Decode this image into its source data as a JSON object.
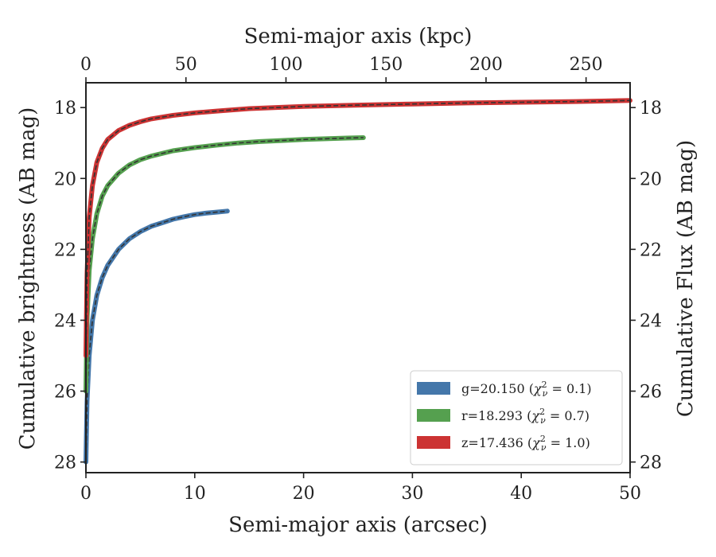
{
  "chart_data": {
    "type": "line",
    "xlabel": "Semi-major axis (arcsec)",
    "ylabel": "Cumulative brightness (AB mag)",
    "top_xlabel": "Semi-major axis (kpc)",
    "right_ylabel": "Cumulative Flux (AB mag)",
    "xlim": [
      0,
      50
    ],
    "ylim": [
      28.3,
      17.3
    ],
    "top_xlim": [
      0,
      272
    ],
    "xticks": [
      0,
      10,
      20,
      30,
      40,
      50
    ],
    "yticks": [
      18,
      20,
      22,
      24,
      26,
      28
    ],
    "top_xticks": [
      0,
      50,
      100,
      150,
      200,
      250
    ],
    "legend_position": "lower right",
    "series": [
      {
        "name": "g=20.150 (χ²ᵥ = 0.1)",
        "legend_main": "g=20.150 (",
        "legend_sub": "ν",
        "legend_tail": " = 0.1)",
        "color": "#4477aa",
        "x": [
          0,
          0.1,
          0.3,
          0.6,
          1.0,
          1.5,
          2,
          3,
          4,
          5,
          6,
          7,
          8,
          9,
          10,
          11,
          12,
          13
        ],
        "y": [
          28.0,
          26.3,
          25.0,
          24.0,
          23.3,
          22.8,
          22.45,
          22.0,
          21.7,
          21.5,
          21.35,
          21.25,
          21.15,
          21.08,
          21.02,
          20.98,
          20.95,
          20.92
        ]
      },
      {
        "name": "r=18.293 (χ²ᵥ = 0.7)",
        "legend_main": "r=18.293 (",
        "legend_sub": "ν",
        "legend_tail": " = 0.7)",
        "color": "#55a04f",
        "x": [
          0,
          0.1,
          0.3,
          0.6,
          1.0,
          1.5,
          2,
          3,
          4,
          5,
          6,
          8,
          10,
          12,
          14,
          16,
          18,
          20,
          22,
          24,
          25.5
        ],
        "y": [
          26.0,
          24.0,
          22.6,
          21.7,
          21.0,
          20.5,
          20.2,
          19.85,
          19.62,
          19.47,
          19.37,
          19.22,
          19.13,
          19.06,
          19.0,
          18.96,
          18.93,
          18.9,
          18.88,
          18.86,
          18.85
        ]
      },
      {
        "name": "z=17.436 (χ²ᵥ = 1.0)",
        "legend_main": "z=17.436 (",
        "legend_sub": "ν",
        "legend_tail": " = 1.0)",
        "color": "#cc3333",
        "x": [
          0,
          0.1,
          0.3,
          0.6,
          1.0,
          1.5,
          2,
          3,
          4,
          5,
          6,
          8,
          10,
          12,
          15,
          20,
          25,
          30,
          35,
          40,
          45,
          50
        ],
        "y": [
          25.0,
          22.7,
          21.1,
          20.2,
          19.55,
          19.15,
          18.9,
          18.65,
          18.5,
          18.4,
          18.32,
          18.22,
          18.15,
          18.1,
          18.03,
          17.97,
          17.93,
          17.9,
          17.87,
          17.85,
          17.83,
          17.8
        ]
      }
    ]
  }
}
